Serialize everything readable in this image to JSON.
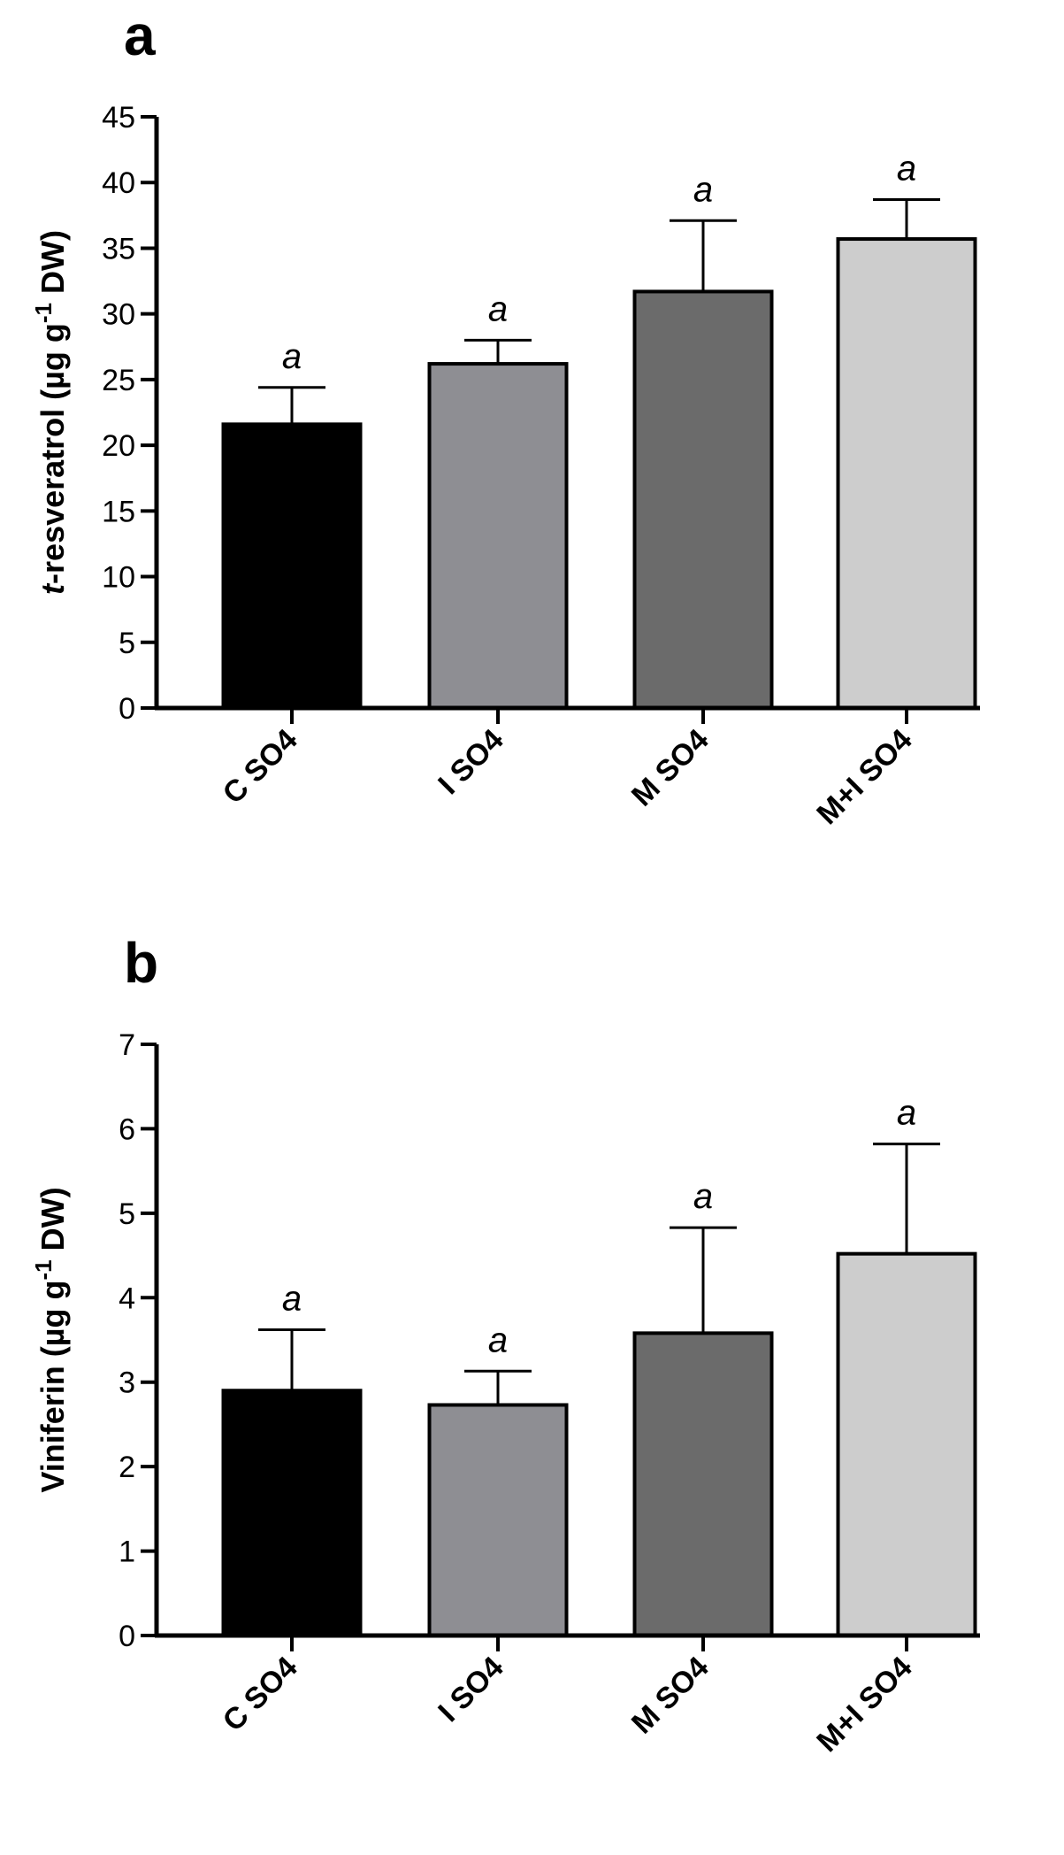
{
  "figure": {
    "panel_a_letter": "a",
    "panel_b_letter": "b"
  },
  "chart_data": [
    {
      "type": "bar",
      "title": "",
      "panel": "a",
      "categories": [
        "C SO4",
        "I SO4",
        "M SO4",
        "M+I SO4"
      ],
      "values": [
        21.6,
        26.2,
        31.7,
        35.7
      ],
      "errors": [
        2.8,
        1.8,
        5.4,
        3.0
      ],
      "significance": [
        "a",
        "a",
        "a",
        "a"
      ],
      "bar_colors": [
        "#000000",
        "#8e8e93",
        "#6b6b6b",
        "#cdcdcd"
      ],
      "ylabel_italic_prefix": "t",
      "ylabel_rest": "-resveratrol (µg g",
      "ylabel_superscript": "-1",
      "ylabel_suffix": " DW)",
      "ylim": [
        0,
        45
      ],
      "yticks": [
        "0",
        "5",
        "10",
        "15",
        "20",
        "25",
        "30",
        "35",
        "40",
        "45"
      ],
      "xlabel": "",
      "grid": false,
      "legend": "none"
    },
    {
      "type": "bar",
      "title": "",
      "panel": "b",
      "categories": [
        "C SO4",
        "I SO4",
        "M SO4",
        "M+I SO4"
      ],
      "values": [
        2.9,
        2.73,
        3.58,
        4.52
      ],
      "errors": [
        0.72,
        0.4,
        1.25,
        1.3
      ],
      "significance": [
        "a",
        "a",
        "a",
        "a"
      ],
      "bar_colors": [
        "#000000",
        "#8e8e93",
        "#6b6b6b",
        "#cdcdcd"
      ],
      "ylabel_italic_prefix": "",
      "ylabel_rest": "Viniferin (µg g",
      "ylabel_superscript": "-1",
      "ylabel_suffix": " DW)",
      "ylim": [
        0,
        7
      ],
      "yticks": [
        "0",
        "1",
        "2",
        "3",
        "4",
        "5",
        "6",
        "7"
      ],
      "xlabel": "",
      "grid": false,
      "legend": "none"
    }
  ]
}
